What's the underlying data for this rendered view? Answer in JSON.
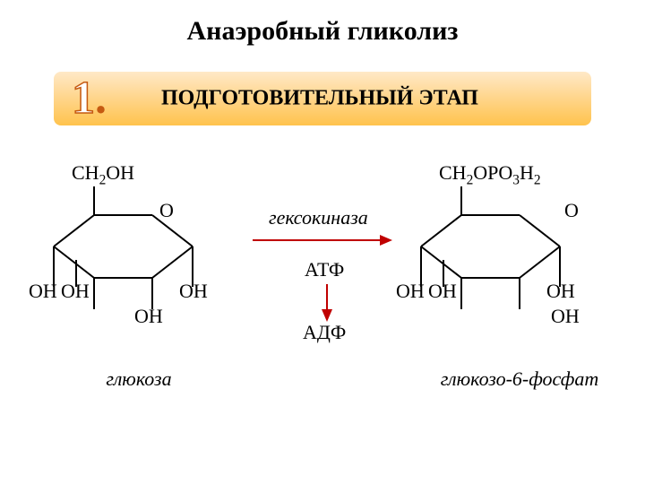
{
  "title": {
    "text": "Анаэробный гликолиз",
    "fontsize": 30,
    "color": "#000000"
  },
  "stage": {
    "number": "1",
    "dot": ".",
    "number_fontsize": 52,
    "number_fill": "#ffffff",
    "number_stroke": "#c55a11",
    "text": "ПОДГОТОВИТЕЛЬНЫЙ ЭТАП",
    "text_fontsize": 24,
    "text_color": "#000000",
    "grad_top": "#ffe9c7",
    "grad_mid": "#ffd58a",
    "grad_bot": "#ffc34d"
  },
  "chem": {
    "line_color": "#000000",
    "line_width": 2,
    "label_fontsize": 22,
    "name_fontsize": 22,
    "arrow_color_h": "#c00000",
    "arrow_color_v": "#c00000",
    "left": {
      "top": "CH₂OH",
      "ring_O": "O",
      "oh1": "ОН",
      "oh2": "ОН",
      "oh3": "ОН",
      "oh4": "ОН",
      "name": "глюкоза"
    },
    "right": {
      "top": "CH₂OPO₃H₂",
      "ring_O": "O",
      "oh1": "ОН",
      "oh2": "ОН",
      "oh3": "ОН",
      "oh4": "ОН",
      "name": "глюкозо-6-фосфат"
    },
    "enzyme": "гексокиназа",
    "atp": "АТФ",
    "adp": "АДФ"
  },
  "layout": {
    "bg": "#ffffff"
  }
}
